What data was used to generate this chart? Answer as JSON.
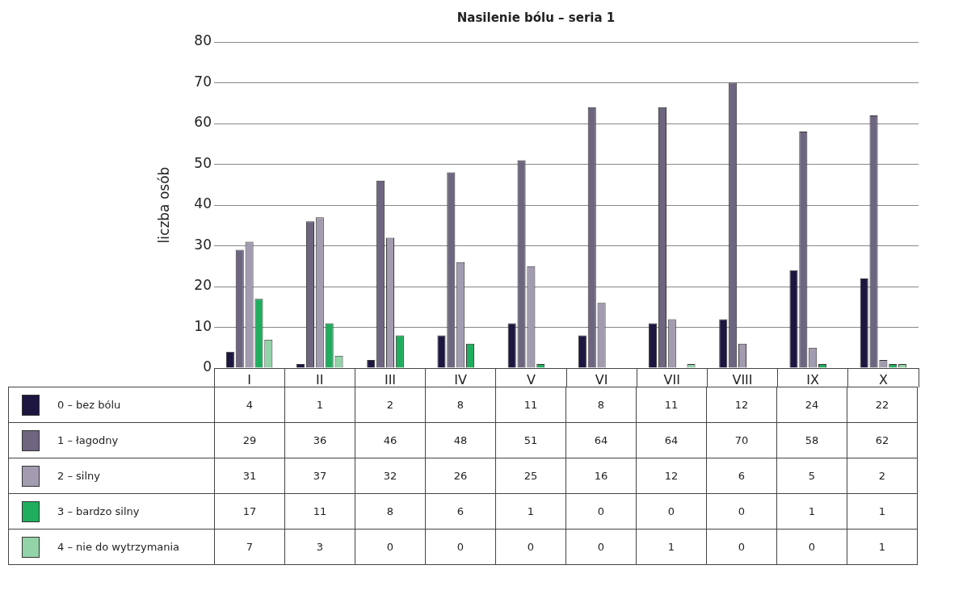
{
  "chart_data": {
    "type": "bar",
    "title": "Nasilenie bólu – seria 1",
    "ylabel": "liczba osób",
    "categories": [
      "I",
      "II",
      "III",
      "IV",
      "V",
      "VI",
      "VII",
      "VIII",
      "IX",
      "X"
    ],
    "series": [
      {
        "name": "0 – bez bólu",
        "color": "#1c1640",
        "values": [
          4,
          1,
          2,
          8,
          11,
          8,
          11,
          12,
          24,
          22
        ]
      },
      {
        "name": "1 – łagodny",
        "color": "#6e6580",
        "values": [
          29,
          36,
          46,
          48,
          51,
          64,
          64,
          70,
          58,
          62
        ]
      },
      {
        "name": "2 – silny",
        "color": "#a39bb0",
        "values": [
          31,
          37,
          32,
          26,
          25,
          16,
          12,
          6,
          5,
          2
        ]
      },
      {
        "name": "3 – bardzo silny",
        "color": "#1fae5e",
        "values": [
          17,
          11,
          8,
          6,
          1,
          0,
          0,
          0,
          1,
          1
        ]
      },
      {
        "name": "4 – nie do wytrzymania",
        "color": "#93d3a8",
        "values": [
          7,
          3,
          0,
          0,
          0,
          0,
          1,
          0,
          0,
          1
        ]
      }
    ],
    "ylim": [
      0,
      80
    ],
    "yticks": [
      0,
      10,
      20,
      30,
      40,
      50,
      60,
      70,
      80
    ],
    "grid": "y",
    "legend": "bottom",
    "data_labels": true
  }
}
